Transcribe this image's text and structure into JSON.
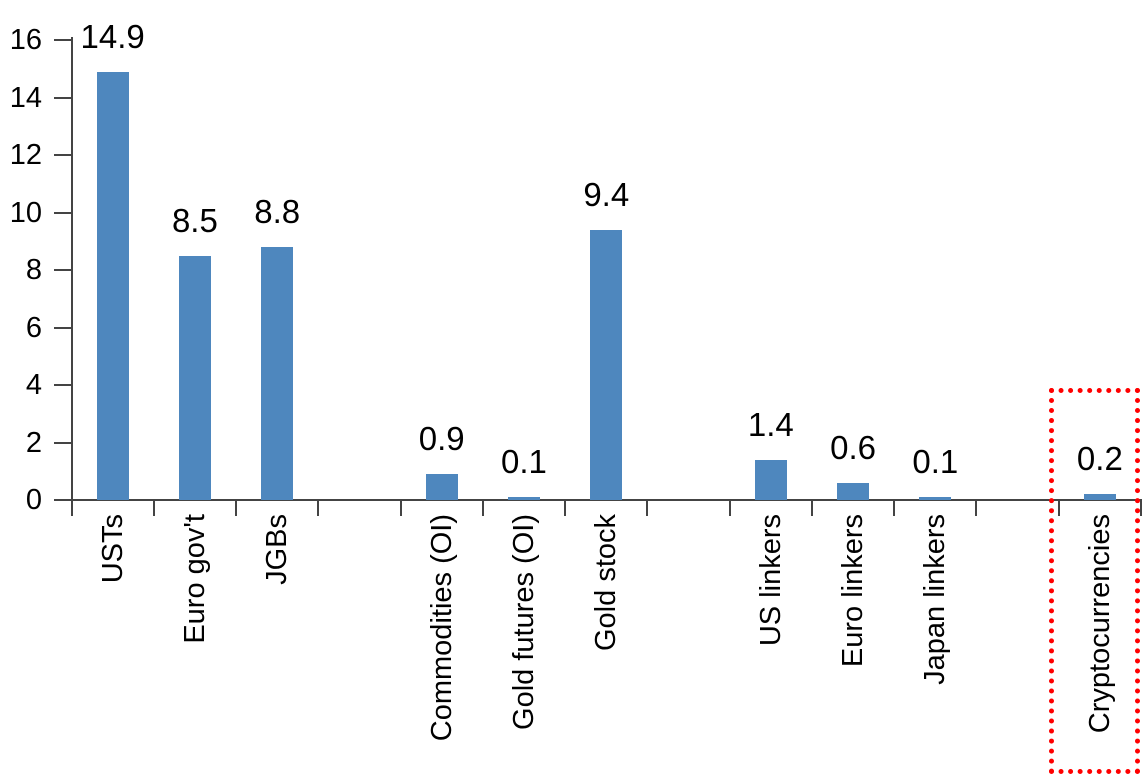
{
  "chart_data": {
    "type": "bar",
    "title": "",
    "xlabel": "",
    "ylabel": "",
    "categories": [
      "USTs",
      "Euro gov't",
      "JGBs",
      "Commodities (OI)",
      "Gold futures (OI)",
      "Gold stock",
      "US linkers",
      "Euro linkers",
      "Japan linkers",
      "Cryptocurrencies"
    ],
    "values": [
      14.9,
      8.5,
      8.8,
      0.9,
      0.1,
      9.4,
      1.4,
      0.6,
      0.1,
      0.2
    ],
    "value_labels": [
      "14.9",
      "8.5",
      "8.8",
      "0.9",
      "0.1",
      "9.4",
      "1.4",
      "0.6",
      "0.1",
      "0.2"
    ],
    "slots": [
      0,
      1,
      2,
      4,
      5,
      6,
      8,
      9,
      10,
      12
    ],
    "n_slots": 13,
    "group_gaps_after": [
      "JGBs",
      "Gold stock",
      "Japan linkers"
    ],
    "ylim": [
      0,
      16
    ],
    "y_ticks": [
      0,
      2,
      4,
      6,
      8,
      10,
      12,
      14,
      16
    ],
    "grid": false,
    "legend": null,
    "bar_color": "#4E87BE",
    "axis_color": "#444444",
    "text_color": "#000000",
    "highlight": {
      "category": "Cryptocurrencies",
      "style": "red-dotted-box",
      "color": "#FF0000"
    }
  }
}
